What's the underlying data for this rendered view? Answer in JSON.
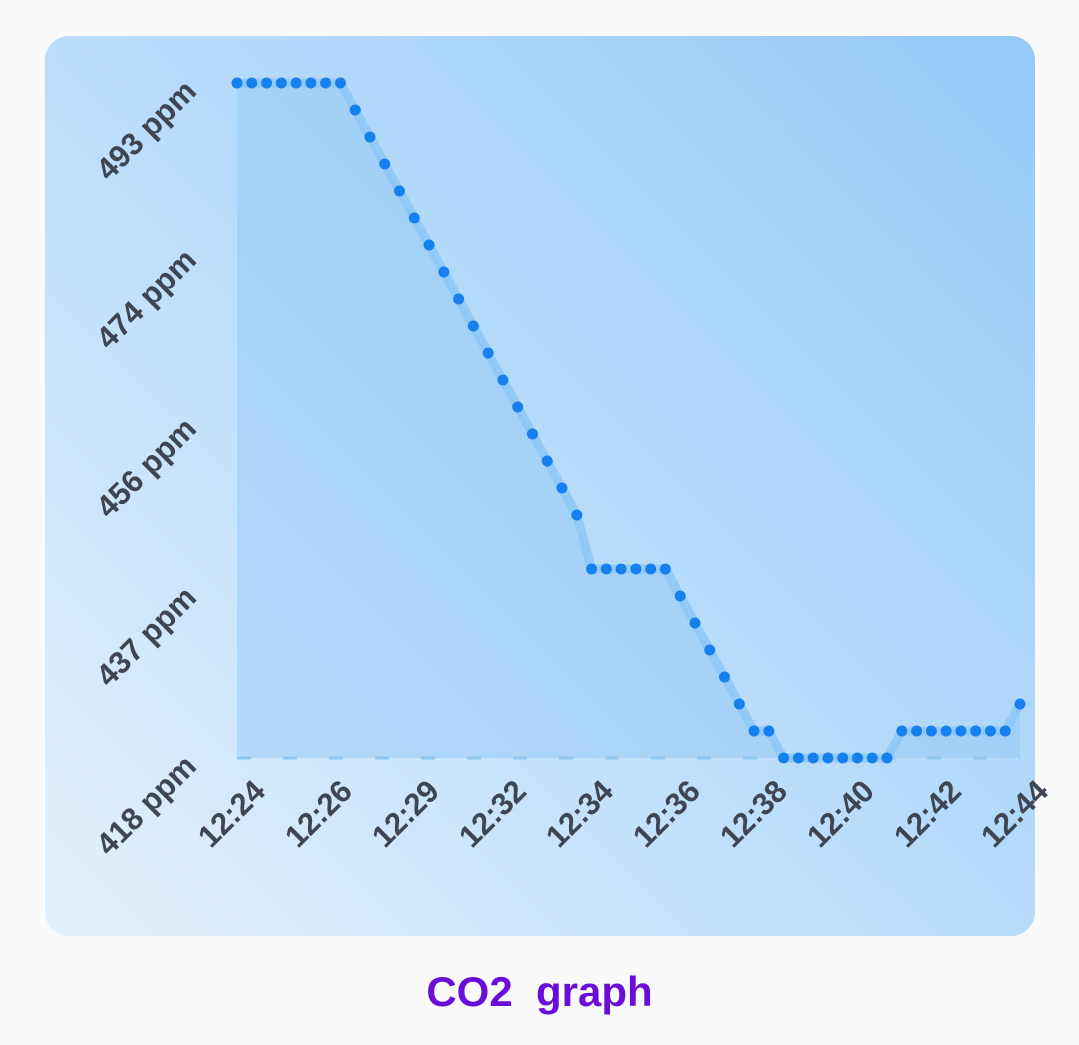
{
  "caption": "CO2  graph",
  "colors": {
    "line": "#8cc7f7",
    "point": "#1580ee",
    "area": "#8dc6f4",
    "baseline": "#8fc8f2",
    "label": "#3d4652",
    "caption": "#6a0dd8"
  },
  "chart_data": {
    "type": "line",
    "title": "",
    "xlabel": "",
    "ylabel": "",
    "unit": "ppm",
    "y_ticks": [
      "418 ppm",
      "437 ppm",
      "456 ppm",
      "474 ppm",
      "493 ppm"
    ],
    "x_ticks": [
      "12:24",
      "12:26",
      "12:29",
      "12:32",
      "12:34",
      "12:36",
      "12:38",
      "12:40",
      "12:42",
      "12:44"
    ],
    "ylim": [
      418,
      493
    ],
    "grid": false,
    "area_fill": true,
    "series": [
      {
        "values": [
          493,
          493,
          493,
          493,
          493,
          493,
          493,
          493,
          490,
          487,
          484,
          481,
          478,
          475,
          472,
          469,
          466,
          463,
          460,
          457,
          454,
          451,
          448,
          445,
          439,
          439,
          439,
          439,
          439,
          439,
          436,
          433,
          430,
          427,
          424,
          421,
          421,
          418,
          418,
          418,
          418,
          418,
          418,
          418,
          418,
          421,
          421,
          421,
          421,
          421,
          421,
          421,
          421,
          424
        ]
      }
    ]
  }
}
